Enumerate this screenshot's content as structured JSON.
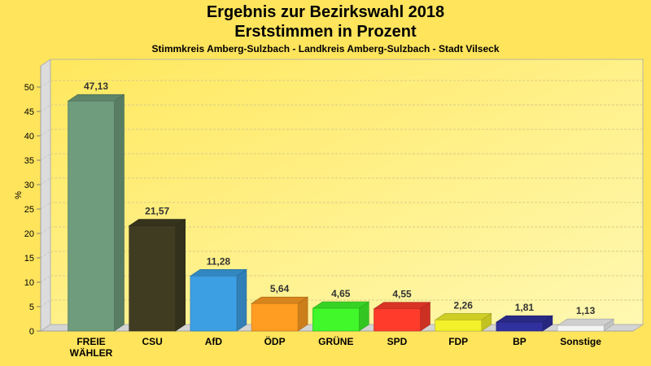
{
  "header": {
    "title": "Ergebnis zur Bezirkswahl 2018",
    "subtitle": "Erststimmen in Prozent",
    "location": "Stimmkreis Amberg-Sulzbach - Landkreis Amberg-Sulzbach - Stadt Vilseck"
  },
  "chart_data": {
    "type": "bar",
    "title": "Ergebnis zur Bezirkswahl 2018",
    "subtitle": "Erststimmen in Prozent",
    "xlabel": "",
    "ylabel": "%",
    "ylim": [
      0,
      50
    ],
    "yticks": [
      0,
      5,
      10,
      15,
      20,
      25,
      30,
      35,
      40,
      45,
      50
    ],
    "grid": true,
    "legend": "none",
    "categories": [
      "FREIE WÄHLER",
      "CSU",
      "AfD",
      "ÖDP",
      "GRÜNE",
      "SPD",
      "FDP",
      "BP",
      "Sonstige"
    ],
    "category_lines": [
      [
        "FREIE",
        "WÄHLER"
      ],
      [
        "CSU"
      ],
      [
        "AfD"
      ],
      [
        "ÖDP"
      ],
      [
        "GRÜNE"
      ],
      [
        "SPD"
      ],
      [
        "FDP"
      ],
      [
        "BP"
      ],
      [
        "Sonstige"
      ]
    ],
    "values": [
      47.13,
      21.57,
      11.28,
      5.64,
      4.65,
      4.55,
      2.26,
      1.81,
      1.13
    ],
    "value_labels": [
      "47,13",
      "21,57",
      "11,28",
      "5,64",
      "4,65",
      "4,55",
      "2,26",
      "1,81",
      "1,13"
    ],
    "colors": [
      "#6E9C7C",
      "#403C22",
      "#3C9FE3",
      "#FF9D22",
      "#40F82A",
      "#FF3C2C",
      "#F3F22A",
      "#30309E",
      "#F4F4F4"
    ]
  },
  "colors": {
    "background": "#FFE45C",
    "plot_wall": "#FFF39A",
    "side_wall": "#DCDCDC"
  }
}
